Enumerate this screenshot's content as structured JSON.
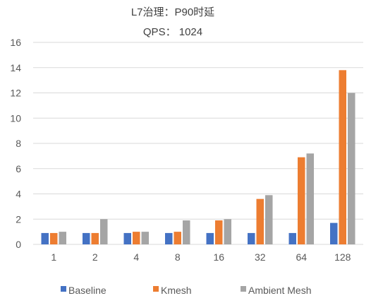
{
  "chart_data": {
    "type": "bar",
    "title": "L7治理：P90时延",
    "subtitle": "QPS： 1024",
    "xlabel": "",
    "ylabel": "",
    "ylim": [
      0,
      16
    ],
    "yticks": [
      "0",
      "2",
      "4",
      "6",
      "8",
      "10",
      "12",
      "14",
      "16"
    ],
    "categories": [
      "1",
      "2",
      "4",
      "8",
      "16",
      "32",
      "64",
      "128"
    ],
    "grid": "horizontal",
    "legend_position": "bottom",
    "series": [
      {
        "name": "Baseline",
        "color": "#4472C4",
        "values": [
          0.9,
          0.9,
          0.9,
          0.9,
          0.9,
          0.9,
          0.9,
          1.7
        ]
      },
      {
        "name": "Kmesh",
        "color": "#ED7D31",
        "values": [
          0.9,
          0.9,
          1.0,
          1.0,
          1.9,
          3.6,
          6.9,
          13.8
        ]
      },
      {
        "name": "Ambient Mesh",
        "color": "#A5A5A5",
        "values": [
          1.0,
          2.0,
          1.0,
          1.9,
          2.0,
          3.9,
          7.2,
          12.0
        ]
      }
    ]
  }
}
